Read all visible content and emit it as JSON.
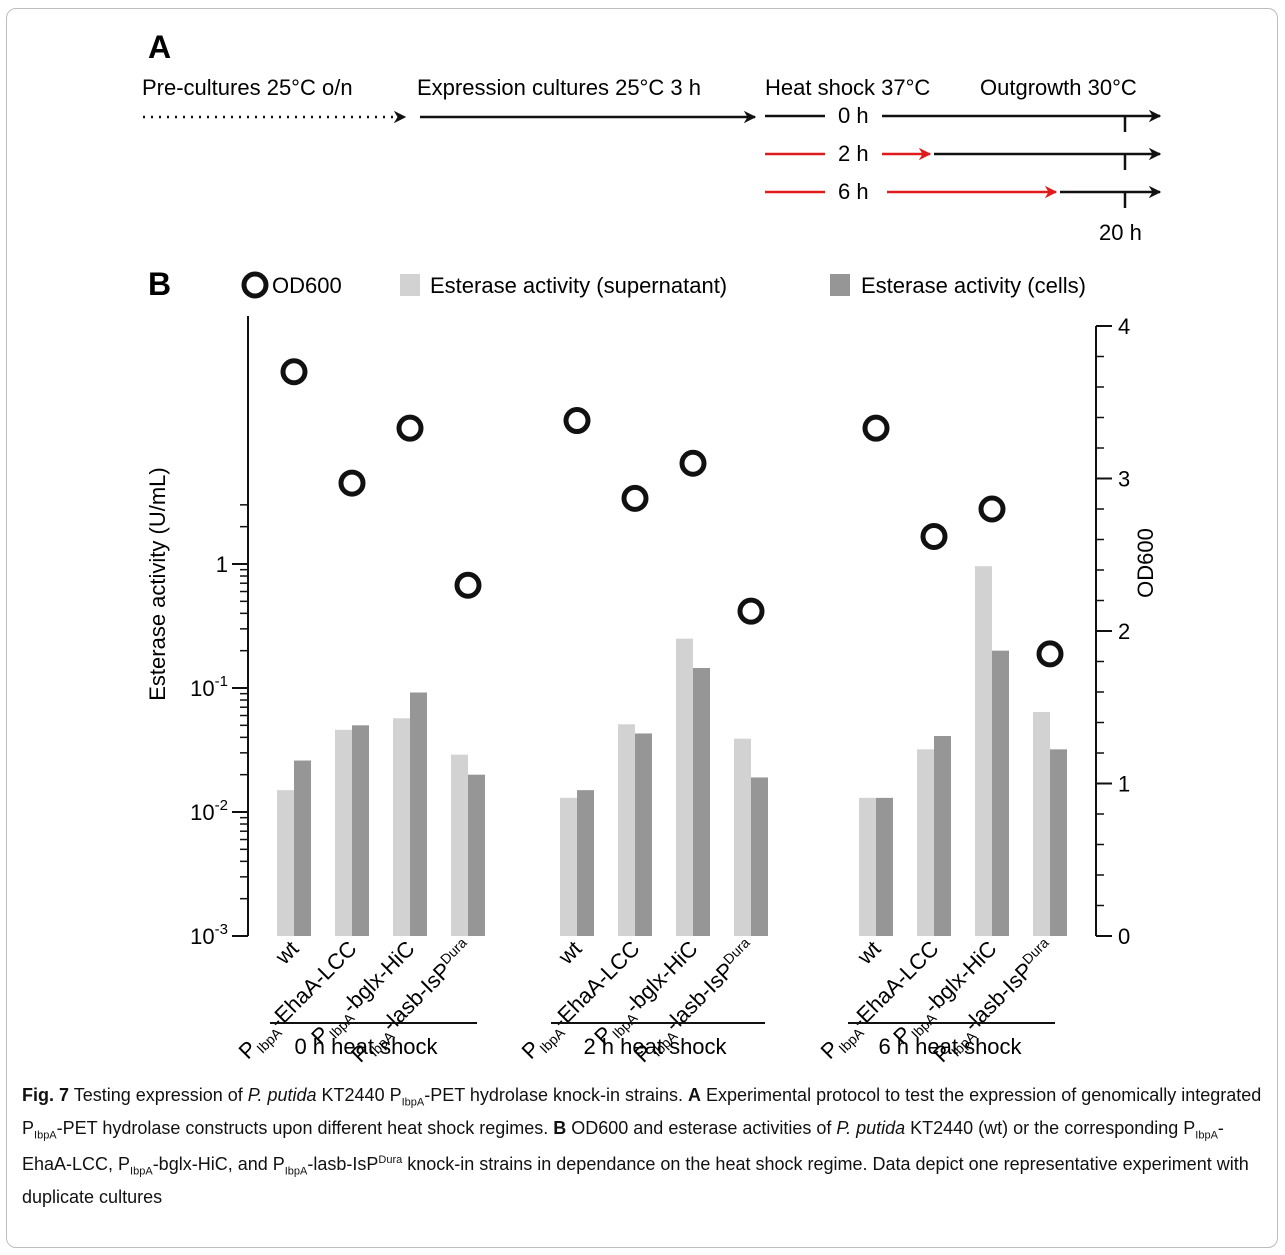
{
  "panel_a": {
    "label": "A",
    "headers": {
      "preculture": "Pre-cultures 25°C o/n",
      "expression": "Expression cultures 25°C 3 h",
      "heatshock": "Heat shock 37°C",
      "outgrowth": "Outgrowth 30°C"
    },
    "rows": [
      "0 h",
      "2 h",
      "6 h"
    ],
    "end_label": "20 h",
    "colors": {
      "black": "#111111",
      "red": "#e01b1b"
    }
  },
  "panel_b_label": "B",
  "legend": {
    "od": "OD600",
    "sup": "Esterase activity (supernatant)",
    "cells": "Esterase activity (cells)"
  },
  "chart_data": {
    "type": "bar",
    "y_left": {
      "label": "Esterase activity (U/mL)",
      "scale": "log",
      "ylim": [
        0.001,
        3
      ],
      "ticks": [
        {
          "base": "10",
          "exp": "-3",
          "value": 0.001
        },
        {
          "base": "10",
          "exp": "-2",
          "value": 0.01
        },
        {
          "base": "10",
          "exp": "-1",
          "value": 0.1
        },
        {
          "base": "1",
          "exp": "",
          "value": 1
        }
      ]
    },
    "y_right": {
      "label": "OD600",
      "scale": "linear",
      "ylim": [
        0,
        4
      ],
      "ticks": [
        "0",
        "1",
        "2",
        "3",
        "4"
      ]
    },
    "groups": [
      {
        "label": "0 h heat shock",
        "strains": [
          {
            "label": [
              "wt",
              "",
              ""
            ],
            "supernatant": 0.015,
            "cells": 0.026,
            "od600": 3.7
          },
          {
            "label": [
              "P",
              "IbpA",
              "-EhaA-LCC"
            ],
            "supernatant": 0.046,
            "cells": 0.05,
            "od600": 2.97
          },
          {
            "label": [
              "P",
              "IbpA",
              "-bglx-HiC"
            ],
            "supernatant": 0.057,
            "cells": 0.092,
            "od600": 3.33
          },
          {
            "label": [
              "P",
              "IbpA",
              "-lasb-IsP^Dura"
            ],
            "supernatant": 0.029,
            "cells": 0.02,
            "od600": 2.3
          }
        ]
      },
      {
        "label": "2 h heat shock",
        "strains": [
          {
            "label": [
              "wt",
              "",
              ""
            ],
            "supernatant": 0.013,
            "cells": 0.015,
            "od600": 3.38
          },
          {
            "label": [
              "P",
              "IbpA",
              "-EhaA-LCC"
            ],
            "supernatant": 0.051,
            "cells": 0.043,
            "od600": 2.87
          },
          {
            "label": [
              "P",
              "IbpA",
              "-bglx-HiC"
            ],
            "supernatant": 0.25,
            "cells": 0.145,
            "od600": 3.1
          },
          {
            "label": [
              "P",
              "IbpA",
              "-lasb-IsP^Dura"
            ],
            "supernatant": 0.039,
            "cells": 0.019,
            "od600": 2.13
          }
        ]
      },
      {
        "label": "6 h heat shock",
        "strains": [
          {
            "label": [
              "wt",
              "",
              ""
            ],
            "supernatant": 0.013,
            "cells": 0.013,
            "od600": 3.33
          },
          {
            "label": [
              "P",
              "IbpA",
              "-EhaA-LCC"
            ],
            "supernatant": 0.032,
            "cells": 0.041,
            "od600": 2.62
          },
          {
            "label": [
              "P",
              "IbpA",
              "-bglx-HiC"
            ],
            "supernatant": 0.96,
            "cells": 0.2,
            "od600": 2.8
          },
          {
            "label": [
              "P",
              "IbpA",
              "-lasb-IsP^Dura"
            ],
            "supernatant": 0.064,
            "cells": 0.032,
            "od600": 1.85
          }
        ]
      }
    ],
    "colors": {
      "supernatant": "#d2d2d2",
      "cells": "#969696",
      "od_marker": "#111111"
    }
  },
  "caption": {
    "fig": "Fig. 7",
    "t1": "  Testing expression of ",
    "org": "P. putida",
    "t2": " KT2440 P",
    "s1": "IbpA",
    "t3": "-PET hydrolase knock-in strains. ",
    "a": "A",
    "t4": " Experimental protocol to test the expression of genomically integrated P",
    "s2": "IbpA",
    "t5": "-PET hydrolase constructs upon different heat shock regimes. ",
    "b": "B",
    "t6": " OD600 and esterase activities of ",
    "org2": "P. putida",
    "t7": " KT2440 (wt) or the corresponding P",
    "s3": "IbpA",
    "t8": "-EhaA-LCC, P",
    "s4": "IbpA",
    "t9": "-bglx-HiC, and P",
    "s5": "IbpA",
    "t10": "-lasb-IsP",
    "sup1": "Dura",
    "t11": " knock-in strains in dependance on the heat shock regime. Data depict one representative experiment with duplicate cultures"
  }
}
